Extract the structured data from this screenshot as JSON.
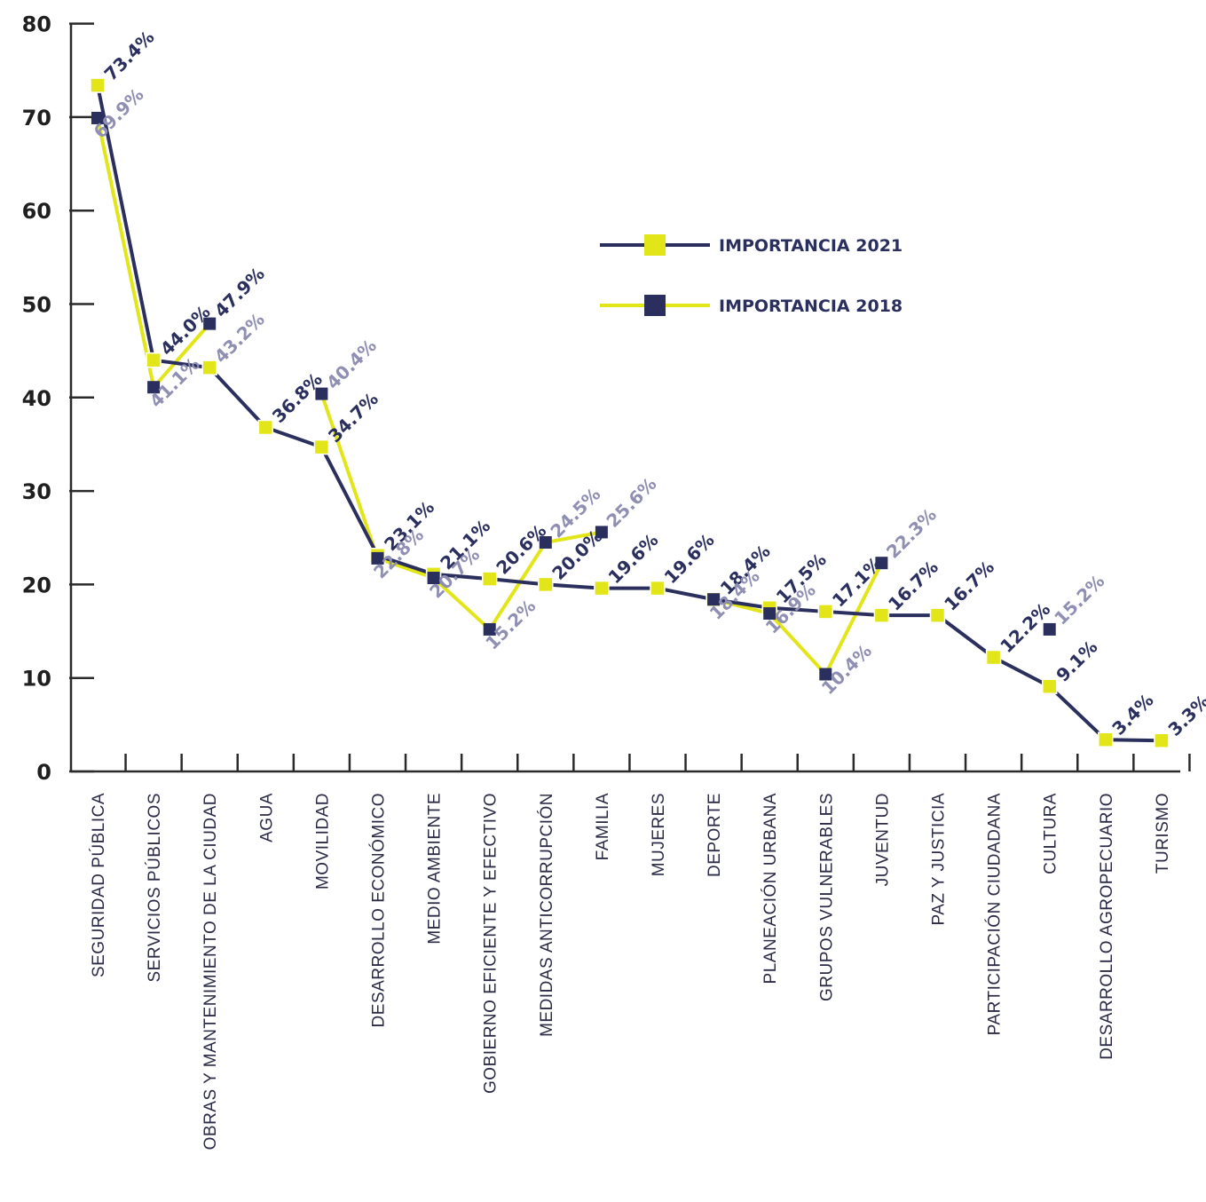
{
  "colors": {
    "navy": "#2b2f5e",
    "yellow": "#e2e619",
    "label_2018": "#8f8eb3",
    "axis": "#2a2a2a"
  },
  "legend": {
    "entries": [
      {
        "label": "IMPORTANCIA 2021",
        "line_color": "#2b2f5e",
        "marker_color": "#e2e619"
      },
      {
        "label": "IMPORTANCIA 2018",
        "line_color": "#e2e619",
        "marker_color": "#2b2f5e"
      }
    ]
  },
  "chart_data": {
    "type": "line",
    "ylim": [
      0,
      80
    ],
    "yticks": [
      "0",
      "10",
      "20",
      "30",
      "40",
      "50",
      "60",
      "70",
      "80"
    ],
    "categories": [
      "SEGURIDAD PÚBLICA",
      "SERVICIOS PÚBLICOS",
      "OBRAS Y MANTENIMIENTO DE LA CIUDAD",
      "AGUA",
      "MOVILIDAD",
      "DESARROLLO ECONÓMICO",
      "MEDIO AMBIENTE",
      "GOBIERNO EFICIENTE Y EFECTIVO",
      "MEDIDAS ANTICORRUPCIÓN",
      "FAMILIA",
      "MUJERES",
      "DEPORTE",
      "PLANEACIÓN URBANA",
      "GRUPOS VULNERABLES",
      "JUVENTUD",
      "PAZ Y JUSTICIA",
      "PARTICIPACIÓN CIUDADANA",
      "CULTURA",
      "DESARROLLO AGROPECUARIO",
      "TURISMO"
    ],
    "series": [
      {
        "name": "IMPORTANCIA 2021",
        "values": [
          73.4,
          44.0,
          43.2,
          36.8,
          34.7,
          23.1,
          21.1,
          20.6,
          20.0,
          19.6,
          19.6,
          18.4,
          17.5,
          17.1,
          16.7,
          16.7,
          12.2,
          9.1,
          3.4,
          3.3
        ],
        "labels": [
          "73.4%",
          "44.0%",
          "",
          "36.8%",
          "34.7%",
          "23.1%",
          "21.1%",
          "20.6%",
          "20.0%",
          "19.6%",
          "19.6%",
          "18.4%",
          "17.5%",
          "17.1%",
          "16.7%",
          "16.7%",
          "12.2%",
          "9.1%",
          "3.4%",
          "3.3%"
        ]
      },
      {
        "name": "IMPORTANCIA 2018",
        "values": [
          69.9,
          41.1,
          47.9,
          null,
          40.4,
          22.8,
          20.7,
          15.2,
          24.5,
          25.6,
          null,
          18.4,
          16.9,
          10.4,
          22.3,
          null,
          null,
          15.2,
          null,
          null
        ],
        "labels": [
          "69.9%",
          "41.1%",
          "47.9%",
          "",
          "40.4%",
          "22.8%",
          "20.7%",
          "15.2%",
          "24.5%",
          "25.6%",
          "",
          "18.4%",
          "16.9%",
          "10.4%",
          "22.3%",
          "",
          "",
          "15.2%",
          "",
          ""
        ]
      }
    ],
    "extra_labels": [
      "43.2%"
    ]
  }
}
